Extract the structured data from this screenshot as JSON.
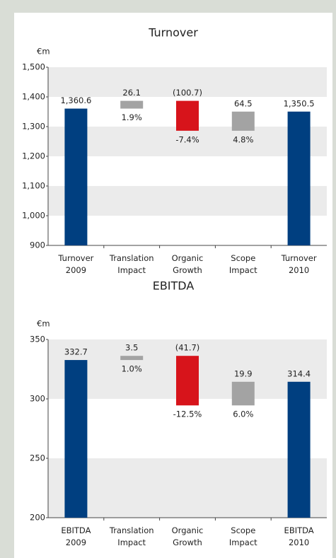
{
  "chart_data": [
    {
      "type": "waterfall",
      "title": "Turnover",
      "unit": "€m",
      "categories": [
        "Turnover 2009",
        "Translation Impact",
        "Organic Growth",
        "Scope Impact",
        "Turnover 2010"
      ],
      "values": [
        1360.6,
        26.1,
        -100.7,
        64.5,
        1350.5
      ],
      "value_labels": [
        "1,360.6",
        "26.1",
        "(100.7)",
        "64.5",
        "1,350.5"
      ],
      "percent_values": [
        null,
        1.9,
        -7.4,
        4.8,
        null
      ],
      "percent_labels": [
        null,
        "1.9%",
        "-7.4%",
        "4.8%",
        null
      ],
      "bar_colors": [
        "#003f80",
        "#a3a3a3",
        "#d7141b",
        "#a3a3a3",
        "#003f80"
      ],
      "positive_color": "#2b5c9e",
      "negative_color": "#d7141b",
      "ylim": [
        900,
        1500
      ],
      "yticks": [
        900,
        {
          "value": 1000,
          "label": "1,000"
        },
        {
          "value": 1100,
          "label": "1,100"
        },
        {
          "value": 1200,
          "label": "1,200"
        },
        {
          "value": 1300,
          "label": "1,300"
        },
        {
          "value": 1400,
          "label": "1,400"
        },
        {
          "value": 1500,
          "label": "1,500"
        }
      ],
      "grid": true
    },
    {
      "type": "waterfall",
      "title": "EBITDA",
      "unit": "€m",
      "categories": [
        "EBITDA 2009",
        "Translation Impact",
        "Organic Growth",
        "Scope Impact",
        "EBITDA 2010"
      ],
      "values": [
        332.7,
        3.5,
        -41.7,
        19.9,
        314.4
      ],
      "value_labels": [
        "332.7",
        "3.5",
        "(41.7)",
        "19.9",
        "314.4"
      ],
      "percent_values": [
        null,
        1.0,
        -12.5,
        6.0,
        null
      ],
      "percent_labels": [
        null,
        "1.0%",
        "-12.5%",
        "6.0%",
        null
      ],
      "bar_colors": [
        "#003f80",
        "#a3a3a3",
        "#d7141b",
        "#a3a3a3",
        "#003f80"
      ],
      "positive_color": "#2b5c9e",
      "negative_color": "#d7141b",
      "ylim": [
        200,
        350
      ],
      "yticks": [
        200,
        250,
        300,
        350
      ],
      "grid": true
    }
  ]
}
